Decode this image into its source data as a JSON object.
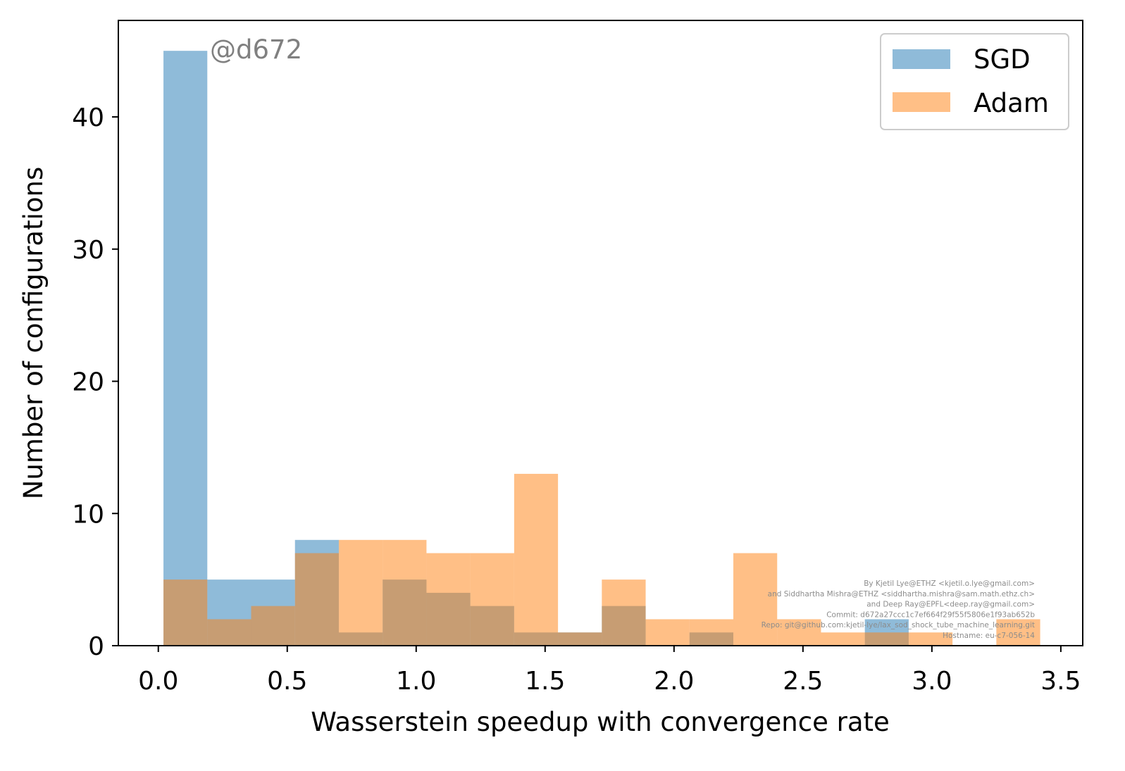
{
  "chart_data": {
    "type": "histogram",
    "xlabel": "Wasserstein speedup with convergence rate",
    "ylabel": "Number of configurations",
    "xlim": [
      -0.155,
      3.585
    ],
    "ylim": [
      0,
      47.3
    ],
    "x_ticks": [
      "0.0",
      "0.5",
      "1.0",
      "1.5",
      "2.0",
      "2.5",
      "3.0",
      "3.5"
    ],
    "y_ticks": [
      "0",
      "10",
      "20",
      "30",
      "40"
    ],
    "bin_edges": [
      0.02,
      0.19,
      0.36,
      0.53,
      0.7,
      0.87,
      1.04,
      1.21,
      1.38,
      1.55,
      1.72,
      1.89,
      2.06,
      2.23,
      2.4,
      2.57,
      2.74,
      2.91,
      3.08,
      3.25,
      3.42
    ],
    "series": [
      {
        "name": "SGD",
        "color": "#1f77b4",
        "alpha": 0.5,
        "values": [
          45,
          5,
          5,
          8,
          1,
          5,
          4,
          3,
          1,
          1,
          3,
          0,
          1,
          0,
          0,
          0,
          2,
          0,
          0,
          0
        ]
      },
      {
        "name": "Adam",
        "color": "#ff7f0e",
        "alpha": 0.5,
        "values": [
          5,
          2,
          3,
          7,
          8,
          8,
          7,
          7,
          13,
          1,
          5,
          2,
          2,
          7,
          2,
          1,
          1,
          1,
          0,
          2
        ]
      }
    ],
    "legend": {
      "position": "top-right",
      "entries": [
        "SGD",
        "Adam"
      ]
    },
    "grid": false,
    "watermark": "@d672",
    "credits": [
      "By Kjetil Lye@ETHZ <kjetil.o.lye@gmail.com>",
      "and Siddhartha Mishra@ETHZ <siddhartha.mishra@sam.math.ethz.ch>",
      "and Deep Ray@EPFL<deep.ray@gmail.com>",
      "Commit: d672a27ccc1c7ef664f29f55f5806e1f93ab652b",
      "Repo: git@github.com:kjetil-lye/lax_sod_shock_tube_machine_learning.git",
      "Hostname: eu-c7-056-14"
    ]
  }
}
